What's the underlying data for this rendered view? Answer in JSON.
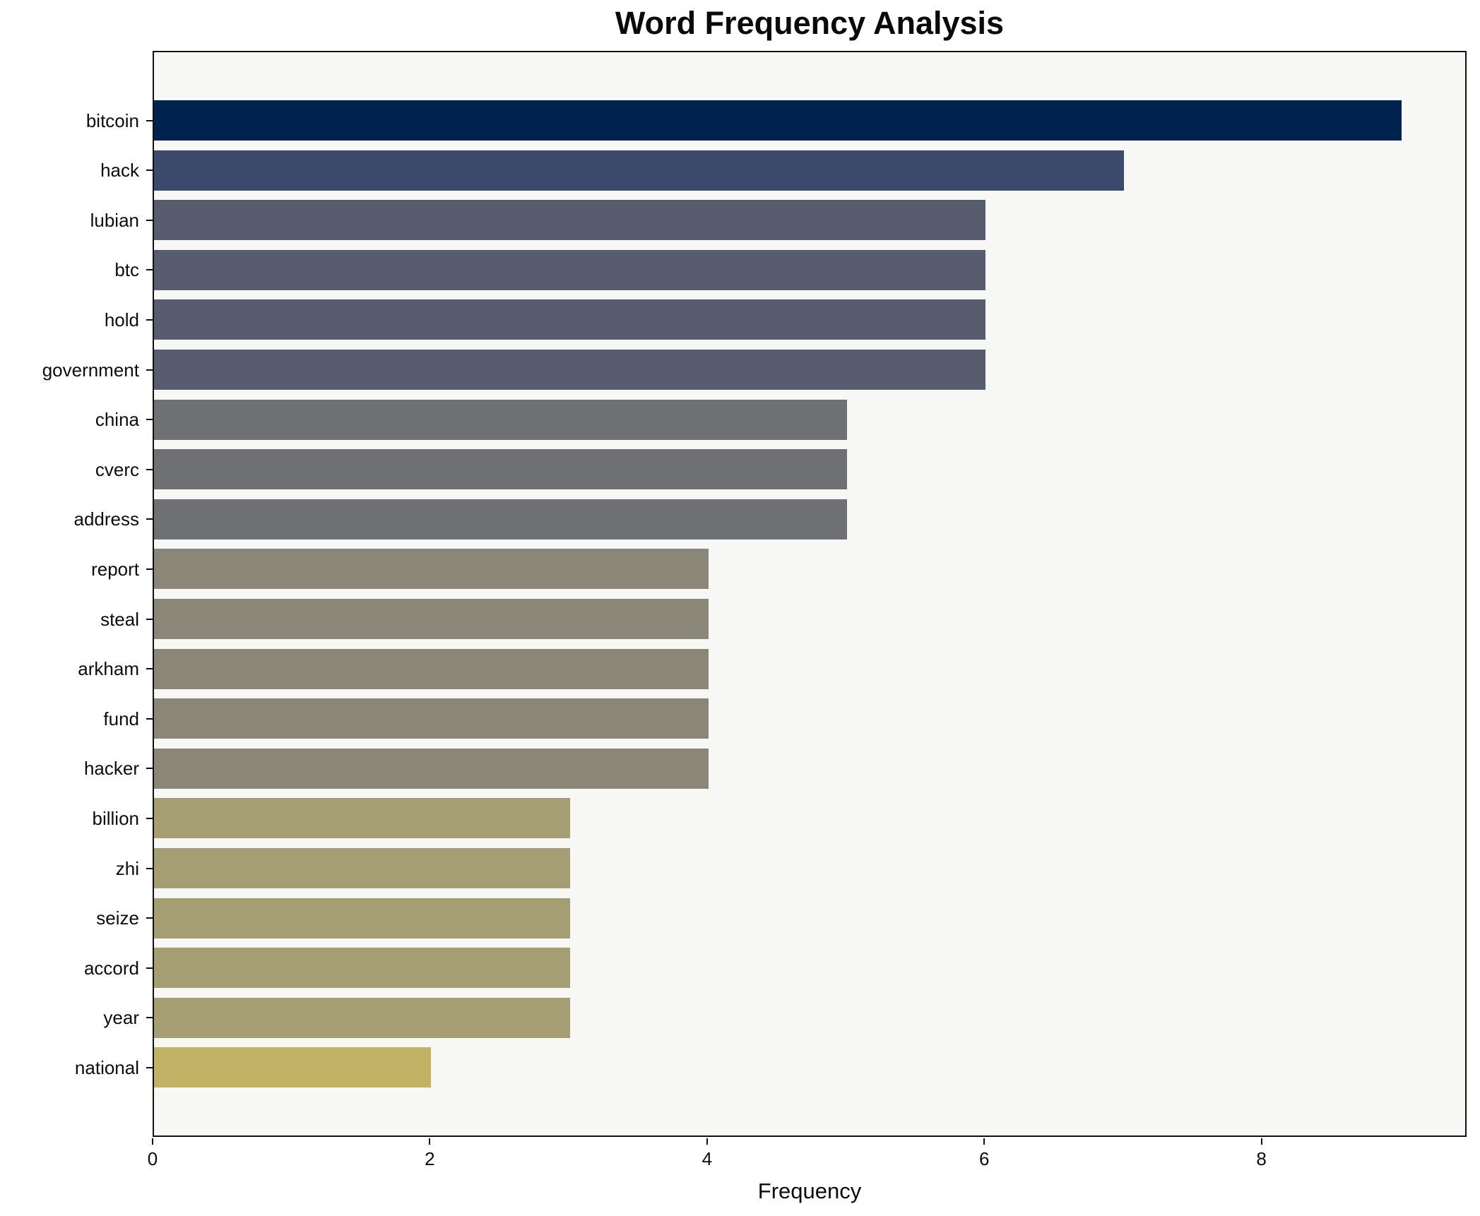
{
  "chart_data": {
    "type": "bar",
    "orientation": "horizontal",
    "title": "Word Frequency Analysis",
    "xlabel": "Frequency",
    "ylabel": "",
    "categories": [
      "bitcoin",
      "hack",
      "lubian",
      "btc",
      "hold",
      "government",
      "china",
      "cverc",
      "address",
      "report",
      "steal",
      "arkham",
      "fund",
      "hacker",
      "billion",
      "zhi",
      "seize",
      "accord",
      "year",
      "national"
    ],
    "values": [
      9,
      7,
      6,
      6,
      6,
      6,
      5,
      5,
      5,
      4,
      4,
      4,
      4,
      4,
      3,
      3,
      3,
      3,
      3,
      2
    ],
    "bar_colors": [
      "#00224e",
      "#3b496c",
      "#575d6e",
      "#575d6e",
      "#575d6e",
      "#575d6e",
      "#6f7073",
      "#6f7073",
      "#6f7073",
      "#8a8779",
      "#8a8779",
      "#8a8779",
      "#8a8779",
      "#8a8779",
      "#a59e74",
      "#a59e74",
      "#a59e74",
      "#a59e74",
      "#a59e74",
      "#c2b266"
    ],
    "xticks": [
      0,
      2,
      4,
      6,
      8
    ],
    "xlim": [
      0,
      9.48
    ],
    "grid": false,
    "legend": null,
    "plot_background": "#f7f7f5",
    "figure_background": "#ffffff",
    "spine_color": "#111111"
  }
}
